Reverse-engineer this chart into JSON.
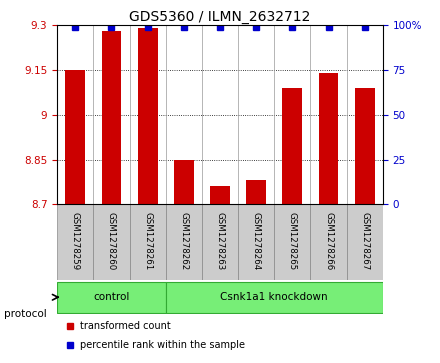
{
  "title": "GDS5360 / ILMN_2632712",
  "samples": [
    "GSM1278259",
    "GSM1278260",
    "GSM1278261",
    "GSM1278262",
    "GSM1278263",
    "GSM1278264",
    "GSM1278265",
    "GSM1278266",
    "GSM1278267"
  ],
  "bar_values": [
    9.15,
    9.28,
    9.29,
    8.85,
    8.76,
    8.78,
    9.09,
    9.14,
    9.09
  ],
  "ylim": [
    8.7,
    9.3
  ],
  "yticks_left": [
    8.7,
    8.85,
    9.0,
    9.15,
    9.3
  ],
  "ytick_left_labels": [
    "8.7",
    "8.85",
    "9",
    "9.15",
    "9.3"
  ],
  "right_tick_positions": [
    8.7,
    8.85,
    9.0,
    9.15,
    9.3
  ],
  "right_tick_labels": [
    "0",
    "25",
    "50",
    "75",
    "100%"
  ],
  "bar_color": "#cc0000",
  "dot_color": "#0000cc",
  "group_labels": [
    "control",
    "Csnk1a1 knockdown"
  ],
  "group_ranges": [
    [
      0,
      3
    ],
    [
      3,
      9
    ]
  ],
  "group_color": "#77ee77",
  "group_edge_color": "#33aa33",
  "protocol_label": "protocol",
  "legend_bar_label": "transformed count",
  "legend_dot_label": "percentile rank within the sample",
  "sample_box_color": "#cccccc",
  "sample_box_edge": "#888888",
  "title_fontsize": 10,
  "bar_width": 0.55,
  "dot_marker": "s",
  "dot_size": 4
}
